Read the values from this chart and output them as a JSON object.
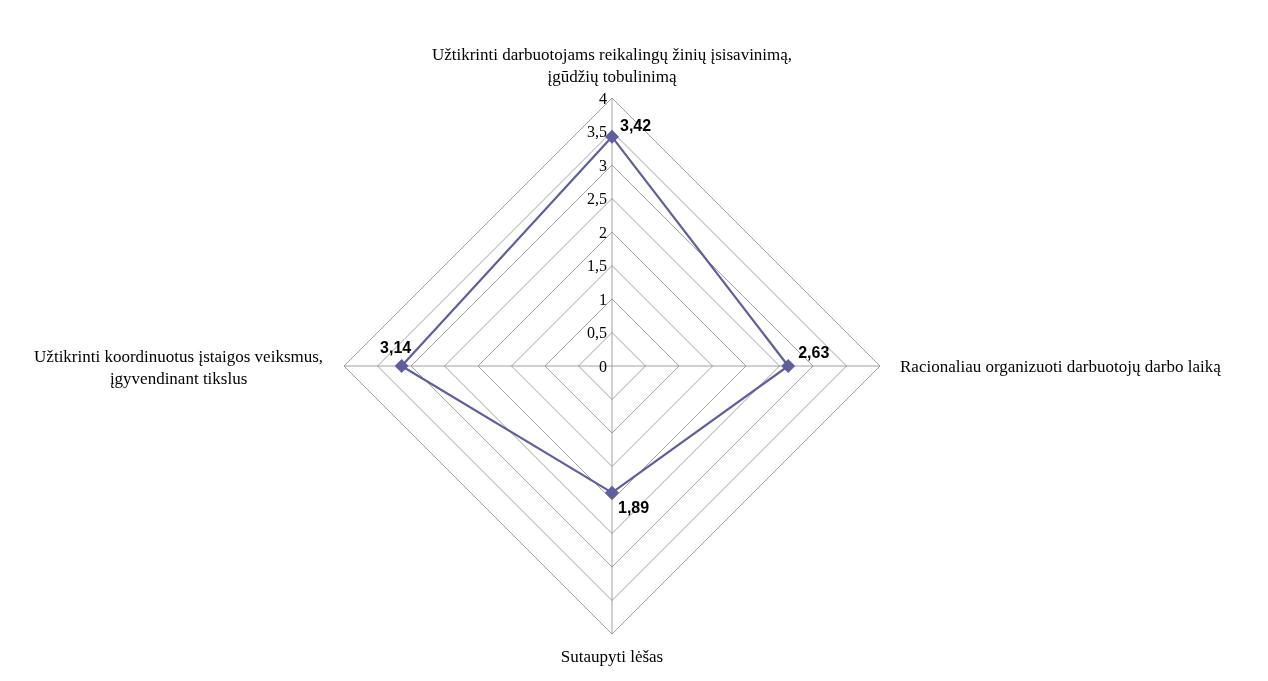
{
  "chart_data": {
    "type": "radar",
    "categories": [
      "Užtikrinti darbuotojams reikalingų žinių įsisavinimą,\nįgūdžių tobulinimą",
      "Racionaliau organizuoti darbuotojų darbo laiką",
      "Sutaupyti lėšas",
      "Užtikrinti koordinuotus įstaigos veiksmus,\nįgyvendinant tikslus"
    ],
    "series": [
      {
        "color": "#5f5f9e",
        "values": [
          3.42,
          2.63,
          1.89,
          3.14
        ],
        "value_labels": [
          "3,42",
          "2,63",
          "1,89",
          "3,14"
        ]
      }
    ],
    "ylim": [
      0,
      4
    ],
    "yticks": [
      {
        "value": 0,
        "label": "0"
      },
      {
        "value": 0.5,
        "label": "0,5"
      },
      {
        "value": 1,
        "label": "1"
      },
      {
        "value": 1.5,
        "label": "1,5"
      },
      {
        "value": 2,
        "label": "2"
      },
      {
        "value": 2.5,
        "label": "2,5"
      },
      {
        "value": 3,
        "label": "3"
      },
      {
        "value": 3.5,
        "label": "3,5"
      },
      {
        "value": 4,
        "label": "4"
      }
    ],
    "grid": true,
    "marker": "diamond"
  }
}
